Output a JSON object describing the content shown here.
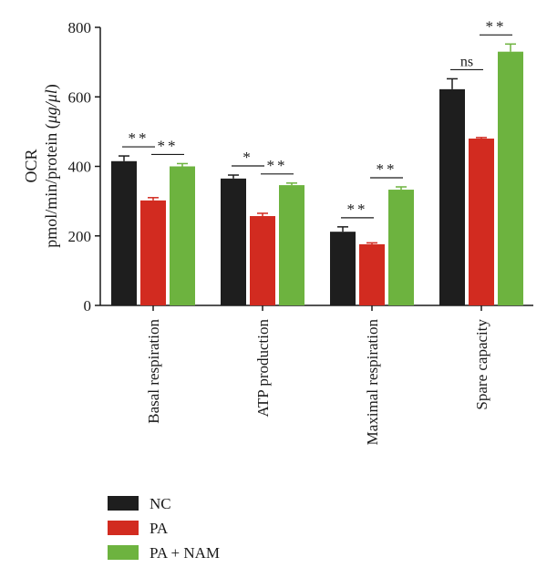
{
  "chart_data": {
    "type": "bar",
    "ylabel_line1": "OCR",
    "ylabel_line2_pre": "pmol/min/protein (",
    "ylabel_line2_unit": "μg/μl",
    "ylabel_line2_post": ")",
    "ylim": [
      0,
      800
    ],
    "yticks": [
      "0",
      "200",
      "400",
      "600",
      "800"
    ],
    "categories": [
      "Basal respiration",
      "ATP production",
      "Maximal respiration",
      "Spare capacity"
    ],
    "series": [
      {
        "name": "NC",
        "color": "#1e1e1e",
        "values": [
          415,
          365,
          212,
          622
        ],
        "errors": [
          15,
          10,
          14,
          30
        ]
      },
      {
        "name": "PA",
        "color": "#d22b20",
        "values": [
          302,
          257,
          176,
          480
        ],
        "errors": [
          8,
          8,
          4,
          3
        ]
      },
      {
        "name": "PA + NAM",
        "color": "#6db33f",
        "values": [
          400,
          346,
          333,
          730
        ],
        "errors": [
          8,
          6,
          8,
          22
        ]
      }
    ],
    "significance": [
      [
        "**",
        "**"
      ],
      [
        "*",
        "**"
      ],
      [
        "**",
        "**"
      ],
      [
        "ns",
        "**"
      ]
    ],
    "grid": false,
    "legend_position": "bottom-left"
  }
}
